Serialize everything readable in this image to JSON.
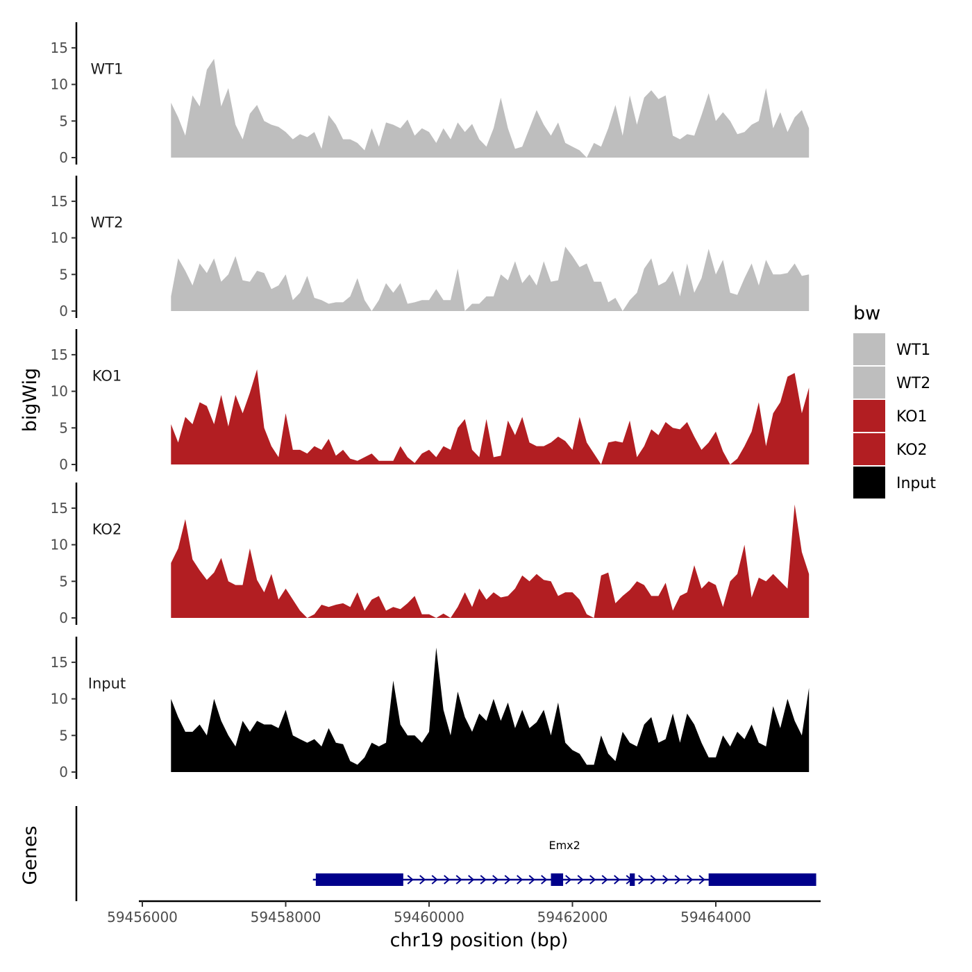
{
  "chart_data": {
    "type": "area",
    "ylabel": "bigWig",
    "xlabel": "chr19 position (bp)",
    "genes_label": "Genes",
    "legend_title": "bw",
    "legend_position": "right",
    "grid": false,
    "xlim": [
      59455900,
      59465800
    ],
    "ylim": [
      0,
      18.5
    ],
    "x_ticks": [
      59456000,
      59458000,
      59460000,
      59462000,
      59464000
    ],
    "x_tick_labels": [
      "59456000",
      "59458000",
      "59460000",
      "59462000",
      "59464000"
    ],
    "y_ticks": [
      0,
      5,
      10,
      15
    ],
    "y_tick_labels": [
      "0",
      "5",
      "10",
      "15"
    ],
    "series": [
      {
        "name": "WT1",
        "color": "#bebebe",
        "x": [
          59456400,
          59456500,
          59456600,
          59456700,
          59456800,
          59456900,
          59457000,
          59457100,
          59457200,
          59457300,
          59457400,
          59457500,
          59457600,
          59457700,
          59457800,
          59457900,
          59458000,
          59458100,
          59458200,
          59458300,
          59458400,
          59458500,
          59458600,
          59458700,
          59458800,
          59458900,
          59459000,
          59459100,
          59459200,
          59459300,
          59459400,
          59459500,
          59459600,
          59459700,
          59459800,
          59459900,
          59460000,
          59460100,
          59460200,
          59460300,
          59460400,
          59460500,
          59460600,
          59460700,
          59460800,
          59460900,
          59461000,
          59461100,
          59461200,
          59461300,
          59461400,
          59461500,
          59461600,
          59461700,
          59461800,
          59461900,
          59462000,
          59462100,
          59462200,
          59462300,
          59462400,
          59462500,
          59462600,
          59462700,
          59462800,
          59462900,
          59463000,
          59463100,
          59463200,
          59463300,
          59463400,
          59463500,
          59463600,
          59463700,
          59463800,
          59463900,
          59464000,
          59464100,
          59464200,
          59464300,
          59464400,
          59464500,
          59464600,
          59464700,
          59464800,
          59464900,
          59465000,
          59465100,
          59465200,
          59465300
        ],
        "values": [
          7.5,
          5.5,
          3,
          8.5,
          7,
          12,
          13.5,
          7,
          9.5,
          4.5,
          2.5,
          6,
          7.2,
          5,
          4.5,
          4.2,
          3.5,
          2.5,
          3.2,
          2.8,
          3.5,
          1.2,
          5.8,
          4.5,
          2.5,
          2.5,
          2,
          1,
          4,
          1.5,
          4.8,
          4.5,
          4,
          5.2,
          3,
          4,
          3.5,
          2,
          4,
          2.5,
          4.8,
          3.5,
          4.6,
          2.5,
          1.5,
          4,
          8.2,
          4,
          1.2,
          1.5,
          4,
          6.5,
          4.5,
          3,
          4.8,
          2,
          1.5,
          1,
          0,
          2,
          1.5,
          4,
          7.2,
          3,
          8.5,
          4.5,
          8.2,
          9.2,
          8,
          8.5,
          3,
          2.5,
          3.2,
          3,
          5.8,
          8.8,
          5,
          6.2,
          5,
          3.2,
          3.5,
          4.5,
          5,
          9.5,
          4,
          6.2,
          3.5,
          5.5,
          6.5,
          4
        ]
      },
      {
        "name": "WT2",
        "color": "#bebebe",
        "x": [
          59456400,
          59456500,
          59456600,
          59456700,
          59456800,
          59456900,
          59457000,
          59457100,
          59457200,
          59457300,
          59457400,
          59457500,
          59457600,
          59457700,
          59457800,
          59457900,
          59458000,
          59458100,
          59458200,
          59458300,
          59458400,
          59458500,
          59458600,
          59458700,
          59458800,
          59458900,
          59459000,
          59459100,
          59459200,
          59459300,
          59459400,
          59459500,
          59459600,
          59459700,
          59459800,
          59459900,
          59460000,
          59460100,
          59460200,
          59460300,
          59460400,
          59460500,
          59460600,
          59460700,
          59460800,
          59460900,
          59461000,
          59461100,
          59461200,
          59461300,
          59461400,
          59461500,
          59461600,
          59461700,
          59461800,
          59461900,
          59462000,
          59462100,
          59462200,
          59462300,
          59462400,
          59462500,
          59462600,
          59462700,
          59462800,
          59462900,
          59463000,
          59463100,
          59463200,
          59463300,
          59463400,
          59463500,
          59463600,
          59463700,
          59463800,
          59463900,
          59464000,
          59464100,
          59464200,
          59464300,
          59464400,
          59464500,
          59464600,
          59464700,
          59464800,
          59464900,
          59465000,
          59465100,
          59465200,
          59465300
        ],
        "values": [
          2,
          7.2,
          5.5,
          3.5,
          6.5,
          5.2,
          7.2,
          4,
          5,
          7.5,
          4.2,
          4,
          5.5,
          5.2,
          3,
          3.5,
          5,
          1.5,
          2.5,
          4.8,
          1.8,
          1.5,
          1,
          1.2,
          1.2,
          2,
          4.5,
          1.5,
          0,
          1.5,
          3.8,
          2.5,
          3.8,
          1,
          1.2,
          1.5,
          1.5,
          3,
          1.5,
          1.5,
          5.8,
          0,
          1,
          1,
          2,
          2,
          5,
          4.2,
          6.8,
          3.8,
          5,
          3.5,
          6.8,
          4,
          4.2,
          8.8,
          7.5,
          6,
          6.5,
          4,
          4,
          1.2,
          1.8,
          0,
          1.5,
          2.5,
          5.8,
          7.2,
          3.5,
          4,
          5.5,
          2,
          6.5,
          2.5,
          4.5,
          8.5,
          5,
          7,
          2.5,
          2.2,
          4.5,
          6.5,
          3.5,
          7,
          5,
          5,
          5.2,
          6.5,
          4.8,
          5
        ]
      },
      {
        "name": "KO1",
        "color": "#b21e22",
        "x": [
          59456400,
          59456500,
          59456600,
          59456700,
          59456800,
          59456900,
          59457000,
          59457100,
          59457200,
          59457300,
          59457400,
          59457500,
          59457600,
          59457700,
          59457800,
          59457900,
          59458000,
          59458100,
          59458200,
          59458300,
          59458400,
          59458500,
          59458600,
          59458700,
          59458800,
          59458900,
          59459000,
          59459100,
          59459200,
          59459300,
          59459400,
          59459500,
          59459600,
          59459700,
          59459800,
          59459900,
          59460000,
          59460100,
          59460200,
          59460300,
          59460400,
          59460500,
          59460600,
          59460700,
          59460800,
          59460900,
          59461000,
          59461100,
          59461200,
          59461300,
          59461400,
          59461500,
          59461600,
          59461700,
          59461800,
          59461900,
          59462000,
          59462100,
          59462200,
          59462300,
          59462400,
          59462500,
          59462600,
          59462700,
          59462800,
          59462900,
          59463000,
          59463100,
          59463200,
          59463300,
          59463400,
          59463500,
          59463600,
          59463700,
          59463800,
          59463900,
          59464000,
          59464100,
          59464200,
          59464300,
          59464400,
          59464500,
          59464600,
          59464700,
          59464800,
          59464900,
          59465000,
          59465100,
          59465200,
          59465300
        ],
        "values": [
          5.5,
          3,
          6.5,
          5.5,
          8.5,
          8,
          5.5,
          9.5,
          5.2,
          9.5,
          7,
          9.8,
          13,
          5,
          2.5,
          1,
          7,
          2,
          2,
          1.5,
          2.5,
          2,
          3.5,
          1.2,
          2,
          0.8,
          0.5,
          1,
          1.5,
          0.5,
          0.5,
          0.5,
          2.5,
          1,
          0.2,
          1.5,
          2,
          1,
          2.5,
          2,
          5,
          6.2,
          2,
          1,
          6.2,
          1,
          1.2,
          6,
          4,
          6.5,
          3,
          2.5,
          2.5,
          3,
          3.8,
          3.2,
          2,
          6.5,
          3,
          1.5,
          0,
          3,
          3.2,
          3,
          6,
          1,
          2.5,
          4.8,
          4,
          5.8,
          5,
          4.8,
          5.8,
          3.8,
          2,
          3,
          4.5,
          1.8,
          0,
          0.8,
          2.5,
          4.5,
          8.5,
          2.5,
          7,
          8.5,
          12,
          12.5,
          7,
          10.5
        ]
      },
      {
        "name": "KO2",
        "color": "#b21e22",
        "x": [
          59456400,
          59456500,
          59456600,
          59456700,
          59456800,
          59456900,
          59457000,
          59457100,
          59457200,
          59457300,
          59457400,
          59457500,
          59457600,
          59457700,
          59457800,
          59457900,
          59458000,
          59458100,
          59458200,
          59458300,
          59458400,
          59458500,
          59458600,
          59458700,
          59458800,
          59458900,
          59459000,
          59459100,
          59459200,
          59459300,
          59459400,
          59459500,
          59459600,
          59459700,
          59459800,
          59459900,
          59460000,
          59460100,
          59460200,
          59460300,
          59460400,
          59460500,
          59460600,
          59460700,
          59460800,
          59460900,
          59461000,
          59461100,
          59461200,
          59461300,
          59461400,
          59461500,
          59461600,
          59461700,
          59461800,
          59461900,
          59462000,
          59462100,
          59462200,
          59462300,
          59462400,
          59462500,
          59462600,
          59462700,
          59462800,
          59462900,
          59463000,
          59463100,
          59463200,
          59463300,
          59463400,
          59463500,
          59463600,
          59463700,
          59463800,
          59463900,
          59464000,
          59464100,
          59464200,
          59464300,
          59464400,
          59464500,
          59464600,
          59464700,
          59464800,
          59464900,
          59465000,
          59465100,
          59465200,
          59465300
        ],
        "values": [
          7.5,
          9.5,
          13.5,
          8,
          6.5,
          5.2,
          6.2,
          8.2,
          5,
          4.5,
          4.5,
          9.5,
          5.2,
          3.5,
          6,
          2.5,
          4,
          2.5,
          1,
          0,
          0.5,
          1.8,
          1.5,
          1.8,
          2,
          1.5,
          3.5,
          1,
          2.5,
          3,
          1,
          1.5,
          1.2,
          2,
          3,
          0.5,
          0.5,
          0,
          0.6,
          0,
          1.5,
          3.5,
          1.5,
          4,
          2.5,
          3.5,
          2.8,
          3,
          4,
          5.8,
          5,
          6,
          5.2,
          5,
          3,
          3.5,
          3.5,
          2.5,
          0.5,
          0,
          5.8,
          6.2,
          2,
          3,
          3.8,
          5,
          4.5,
          3,
          3,
          4.8,
          1,
          3,
          3.5,
          7.2,
          4,
          5,
          4.5,
          1.5,
          5,
          6,
          10,
          2.8,
          5.5,
          5,
          6,
          5,
          4,
          15.5,
          9,
          6
        ]
      },
      {
        "name": "Input",
        "color": "#000000",
        "x": [
          59456400,
          59456500,
          59456600,
          59456700,
          59456800,
          59456900,
          59457000,
          59457100,
          59457200,
          59457300,
          59457400,
          59457500,
          59457600,
          59457700,
          59457800,
          59457900,
          59458000,
          59458100,
          59458200,
          59458300,
          59458400,
          59458500,
          59458600,
          59458700,
          59458800,
          59458900,
          59459000,
          59459100,
          59459200,
          59459300,
          59459400,
          59459500,
          59459600,
          59459700,
          59459800,
          59459900,
          59460000,
          59460100,
          59460200,
          59460300,
          59460400,
          59460500,
          59460600,
          59460700,
          59460800,
          59460900,
          59461000,
          59461100,
          59461200,
          59461300,
          59461400,
          59461500,
          59461600,
          59461700,
          59461800,
          59461900,
          59462000,
          59462100,
          59462200,
          59462300,
          59462400,
          59462500,
          59462600,
          59462700,
          59462800,
          59462900,
          59463000,
          59463100,
          59463200,
          59463300,
          59463400,
          59463500,
          59463600,
          59463700,
          59463800,
          59463900,
          59464000,
          59464100,
          59464200,
          59464300,
          59464400,
          59464500,
          59464600,
          59464700,
          59464800,
          59464900,
          59465000,
          59465100,
          59465200,
          59465300
        ],
        "values": [
          10,
          7.5,
          5.5,
          5.5,
          6.5,
          5,
          10,
          7,
          5,
          3.5,
          7,
          5.5,
          7,
          6.5,
          6.5,
          6,
          8.5,
          5,
          4.5,
          4,
          4.5,
          3.5,
          6,
          4,
          3.8,
          1.5,
          1,
          2,
          4,
          3.5,
          4,
          12.5,
          6.5,
          5,
          5,
          4,
          5.5,
          17,
          8.5,
          5,
          11,
          7.5,
          5.5,
          8,
          7,
          10,
          7,
          9.5,
          6,
          8.5,
          6,
          6.8,
          8.5,
          5,
          9.5,
          4,
          3,
          2.5,
          1,
          1,
          5,
          2.5,
          1.5,
          5.5,
          4,
          3.5,
          6.5,
          7.5,
          4,
          4.5,
          8,
          4,
          8,
          6.5,
          4,
          2,
          2,
          5,
          3.5,
          5.5,
          4.5,
          6.5,
          4,
          3.5,
          9,
          6,
          10,
          7,
          5,
          11.5
        ]
      }
    ],
    "gene": {
      "name": "Emx2",
      "color": "#00008b",
      "start": 59458380,
      "end": 59465400,
      "exons": [
        [
          59458420,
          59459640
        ],
        [
          59461700,
          59461870
        ],
        [
          59462800,
          59462870
        ],
        [
          59463900,
          59465400
        ]
      ],
      "strand": "+"
    }
  }
}
